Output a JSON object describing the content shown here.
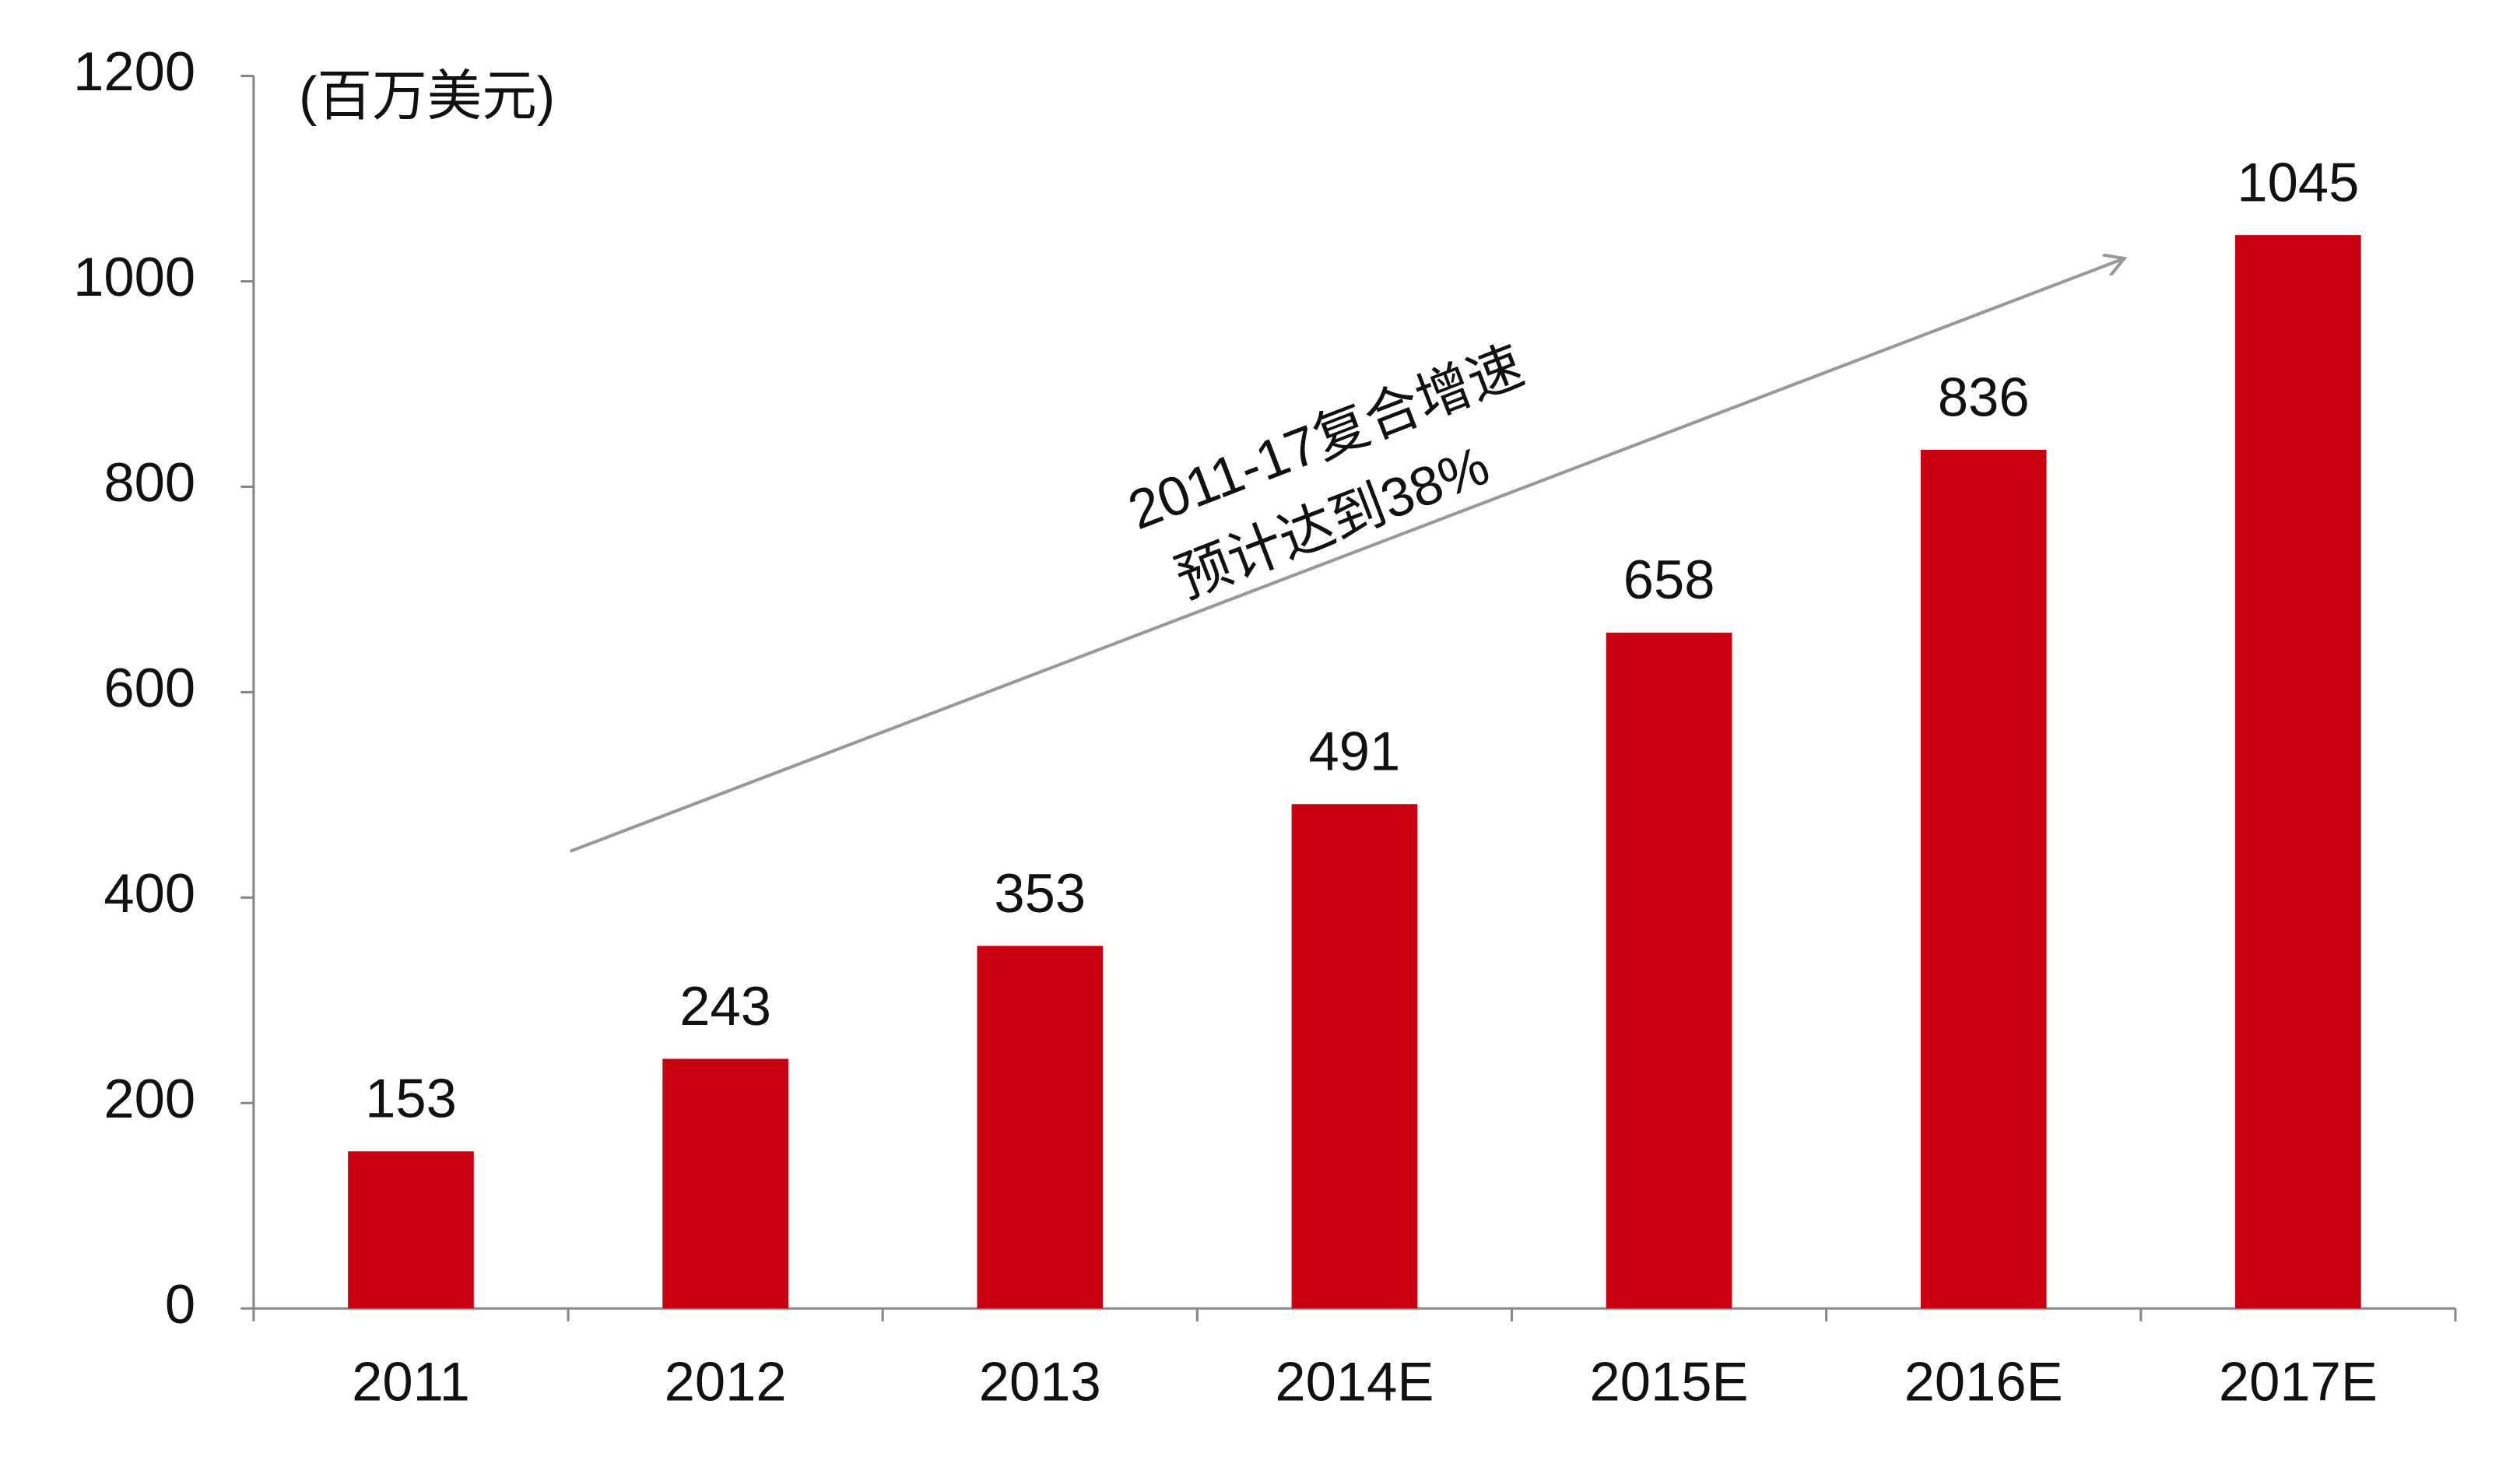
{
  "chart_data": {
    "type": "bar",
    "unit_label": "(百万美元)",
    "categories": [
      "2011",
      "2012",
      "2013",
      "2014E",
      "2015E",
      "2016E",
      "2017E"
    ],
    "values": [
      153,
      243,
      353,
      491,
      658,
      836,
      1045
    ],
    "color": "#c8000f",
    "ylim": [
      0,
      1200
    ],
    "yticks": [
      0,
      200,
      400,
      600,
      800,
      1000,
      1200
    ],
    "annotation": [
      "2011-17复合增速",
      "预计达到38%"
    ]
  }
}
